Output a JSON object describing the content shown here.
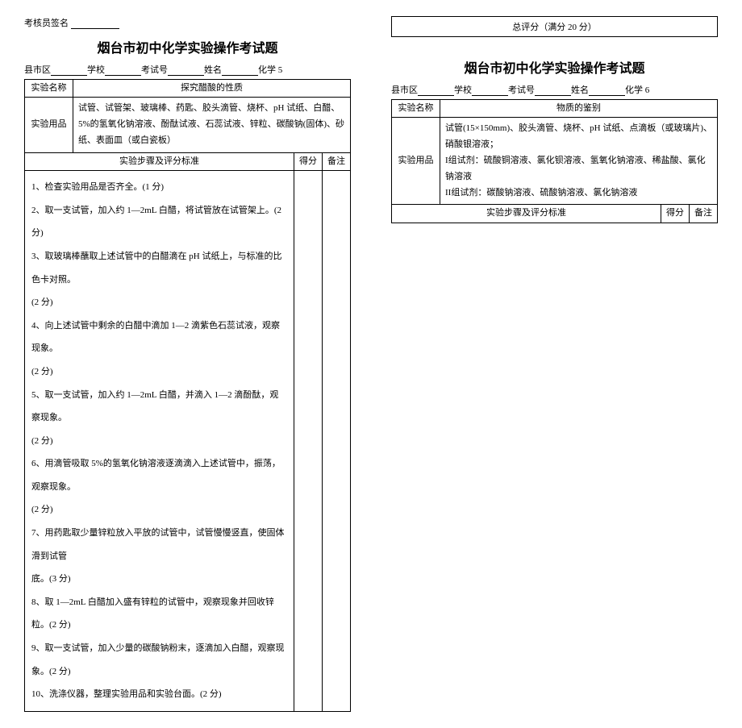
{
  "left": {
    "signature_label": "考核员签名",
    "title": "烟台市初中化学实验操作考试题",
    "info": {
      "district": "县市区",
      "school": "学校",
      "exam_no": "考试号",
      "name": "姓名",
      "subject": "化学 5"
    },
    "table": {
      "exp_name_label": "实验名称",
      "exp_name": "探究醋酸的性质",
      "supplies_label": "实验用品",
      "supplies": "试管、试管架、玻璃棒、药匙、胶头滴管、烧杯、pH 试纸、白醋、5%的氢氧化钠溶液、酚酞试液、石蕊试液、锌粒、碳酸钠(固体)、砂纸、表面皿（或白瓷板）",
      "steps_header": "实验步骤及评分标准",
      "score_header": "得分",
      "note_header": "备注",
      "steps": [
        "1、检查实验用品是否齐全。(1 分)",
        "2、取一支试管，加入约 1—2mL 白醋，将试管放在试管架上。(2 分)",
        "3、取玻璃棒蘸取上述试管中的白醋滴在 pH 试纸上，与标准的比色卡对照。",
        "(2 分)",
        "4、向上述试管中剩余的白醋中滴加 1—2 滴紫色石蕊试液，观察现象。",
        "(2 分)",
        "5、取一支试管，加入约 1—2mL 白醋，并滴入 1—2 滴酚酞，观察现象。",
        "(2 分)",
        "6、用滴管吸取 5%的氢氧化钠溶液逐滴滴入上述试管中，振荡，观察现象。",
        "(2 分)",
        "7、用药匙取少量锌粒放入平放的试管中，试管慢慢竖直，使固体滑到试管",
        "底。(3 分)",
        "8、取 1—2mL 白醋加入盛有锌粒的试管中，观察现象并回收锌粒。(2 分)",
        "",
        "9、取一支试管，加入少量的碳酸钠粉末，逐滴加入白醋，观察现象。(2 分)",
        "",
        "10、洗涤仪器，整理实验用品和实验台面。(2 分)",
        ""
      ]
    }
  },
  "right": {
    "total_score": "总评分（满分 20 分）",
    "title": "烟台市初中化学实验操作考试题",
    "info": {
      "district": "县市区",
      "school": "学校",
      "exam_no": "考试号",
      "name": "姓名",
      "subject": "化学 6"
    },
    "table": {
      "exp_name_label": "实验名称",
      "exp_name": "物质的鉴别",
      "supplies_label": "实验用品",
      "supplies_line1": "试管(15×150mm)、胶头滴管、烧杯、pH 试纸、点滴板（或玻璃片)、",
      "supplies_line2": "硝酸银溶液；",
      "supplies_line3": "I组试剂：硫酸铜溶液、氯化钡溶液、氢氧化钠溶液、稀盐酸、氯化钠溶液",
      "supplies_line4": "II组试剂：碳酸钠溶液、硫酸钠溶液、氯化钠溶液",
      "steps_header": "实验步骤及评分标准",
      "score_header": "得分",
      "note_header": "备注"
    }
  }
}
